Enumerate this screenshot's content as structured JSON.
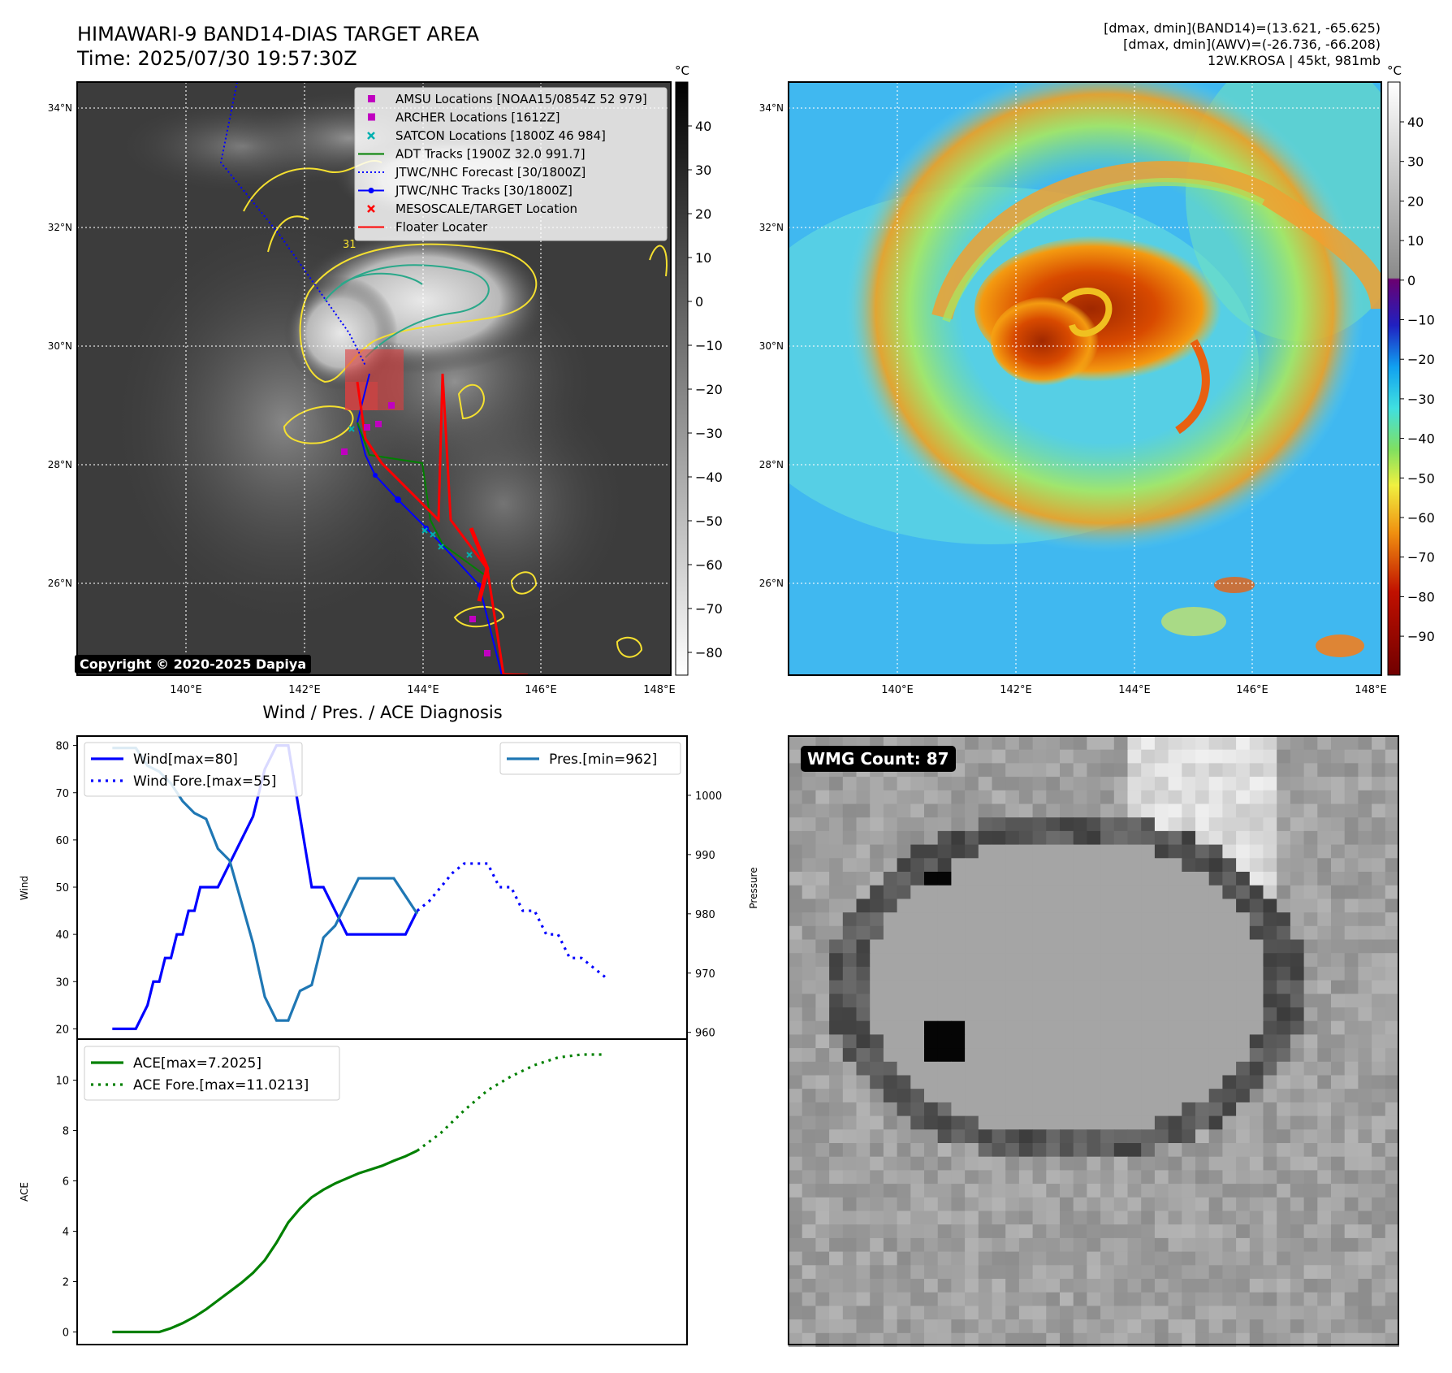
{
  "header": {
    "title_line1": "HIMAWARI-9 BAND14-DIAS TARGET AREA",
    "title_line2": "Time: 2025/07/30 19:57:30Z",
    "info_line1": "[dmax, dmin](BAND14)=(13.621, -65.625)",
    "info_line2": "[dmax, dmin](AWV)=(-26.736, -66.208)",
    "info_line3": "12W.KROSA | 45kt, 981mb"
  },
  "map": {
    "lat_labels": [
      "34°N",
      "32°N",
      "30°N",
      "28°N",
      "26°N"
    ],
    "lon_labels": [
      "140°E",
      "142°E",
      "144°E",
      "146°E",
      "148°E"
    ],
    "legend": [
      {
        "label": "AMSU Locations [NOAA15/0854Z 52 979]",
        "marker": "square",
        "color": "#c000c0"
      },
      {
        "label": "ARCHER Locations [1612Z]",
        "marker": "square",
        "color": "#c000c0"
      },
      {
        "label": "SATCON Locations [1800Z 46 984]",
        "marker": "x",
        "color": "#00b0b0"
      },
      {
        "label": "ADT Tracks [1900Z 32.0 991.7]",
        "marker": "line",
        "color": "#008000"
      },
      {
        "label": "JTWC/NHC Forecast [30/1800Z]",
        "marker": "dotted",
        "color": "#0000ff"
      },
      {
        "label": "JTWC/NHC Tracks [30/1800Z]",
        "marker": "line-dot",
        "color": "#0000ff"
      },
      {
        "label": "MESOSCALE/TARGET Location",
        "marker": "x",
        "color": "#ff0000"
      },
      {
        "label": "Floater Locater",
        "marker": "line",
        "color": "#ff0000"
      }
    ],
    "copyright": "Copyright © 2020-2025 Dapiya",
    "gray_colorbar": {
      "unit": "°C",
      "ticks": [
        "40",
        "30",
        "20",
        "10",
        "0",
        "−10",
        "−20",
        "−30",
        "−40",
        "−50",
        "−60",
        "−70",
        "−80"
      ]
    },
    "color_colorbar": {
      "unit": "°C",
      "ticks": [
        "40",
        "30",
        "20",
        "10",
        "0",
        "−10",
        "−20",
        "−30",
        "−40",
        "−50",
        "−60",
        "−70",
        "−80",
        "−90"
      ]
    },
    "contour_label": "31"
  },
  "diagnosis": {
    "title": "Wind / Pres. / ACE Diagnosis",
    "wind_label": "Wind",
    "pressure_label": "Pressure",
    "ace_label": "ACE",
    "wmg_count": "WMG Count: 87"
  },
  "chart_data": [
    {
      "type": "line",
      "title": "Wind / Pres. / ACE Diagnosis",
      "ylabel": "Wind",
      "y2label": "Pressure",
      "ylim": [
        18,
        82
      ],
      "y2lim": [
        959,
        1010
      ],
      "yticks": [
        20,
        30,
        40,
        50,
        60,
        70,
        80
      ],
      "y2ticks": [
        960,
        970,
        980,
        990,
        1000
      ],
      "series": [
        {
          "name": "Wind[max=80]",
          "style": "solid",
          "color": "#0000ff",
          "axis": "left",
          "x": [
            0,
            0.25,
            1,
            1.5,
            1.75,
            2,
            2.25,
            2.5,
            2.75,
            3,
            3.25,
            3.5,
            3.75,
            4,
            4.5,
            5,
            5.5,
            6,
            6.5,
            7,
            7.25,
            7.5,
            8,
            8.5,
            9,
            9.5,
            10,
            10.5,
            11,
            11.5,
            12,
            12.5,
            13
          ],
          "values": [
            20,
            20,
            20,
            25,
            30,
            30,
            35,
            35,
            40,
            40,
            45,
            45,
            50,
            50,
            50,
            55,
            60,
            65,
            75,
            80,
            80,
            80,
            65,
            50,
            50,
            45,
            40,
            40,
            40,
            40,
            40,
            40,
            45
          ]
        },
        {
          "name": "Wind Fore.[max=55]",
          "style": "dotted",
          "color": "#0000ff",
          "axis": "left",
          "x": [
            13,
            13.5,
            14,
            14.5,
            15,
            16,
            16.5,
            17,
            17.5,
            18,
            18.5,
            19,
            19.5,
            20,
            20.5,
            21
          ],
          "values": [
            45,
            47,
            50,
            53,
            55,
            55,
            50,
            50,
            45,
            45,
            40,
            40,
            35,
            35,
            33,
            31
          ]
        },
        {
          "name": "Pres.[min=962]",
          "style": "solid",
          "color": "#1f77b4",
          "axis": "right",
          "x": [
            0,
            1,
            1.5,
            2,
            2.5,
            3,
            3.5,
            4,
            4.5,
            5,
            5.5,
            6,
            6.5,
            7,
            7.5,
            8,
            8.5,
            9,
            9.5,
            10,
            10.5,
            11,
            12,
            12.5,
            13
          ],
          "values": [
            1008,
            1008,
            1005,
            1004,
            1002,
            999,
            997,
            996,
            991,
            989,
            982,
            975,
            966,
            962,
            962,
            967,
            968,
            976,
            978,
            982,
            986,
            986,
            986,
            983,
            980
          ]
        }
      ]
    },
    {
      "type": "line",
      "ylabel": "ACE",
      "ylim": [
        -0.5,
        11.6
      ],
      "yticks": [
        0,
        2,
        4,
        6,
        8,
        10
      ],
      "series": [
        {
          "name": "ACE[max=7.2025]",
          "style": "solid",
          "color": "#008000",
          "x": [
            0,
            2,
            2.5,
            3,
            3.5,
            4,
            4.5,
            5,
            5.5,
            6,
            6.5,
            7,
            7.5,
            8,
            8.5,
            9,
            9.5,
            10,
            10.5,
            11,
            11.5,
            12,
            12.5,
            13
          ],
          "values": [
            0,
            0,
            0.15,
            0.35,
            0.6,
            0.9,
            1.25,
            1.6,
            1.95,
            2.35,
            2.85,
            3.55,
            4.35,
            4.9,
            5.35,
            5.65,
            5.9,
            6.1,
            6.3,
            6.45,
            6.6,
            6.8,
            6.98,
            7.2
          ]
        },
        {
          "name": "ACE Fore.[max=11.0213]",
          "style": "dotted",
          "color": "#008000",
          "x": [
            13,
            14,
            15,
            16,
            17,
            18,
            19,
            20,
            21
          ],
          "values": [
            7.2,
            7.9,
            8.8,
            9.6,
            10.15,
            10.6,
            10.9,
            11.02,
            11.02
          ]
        }
      ]
    }
  ]
}
